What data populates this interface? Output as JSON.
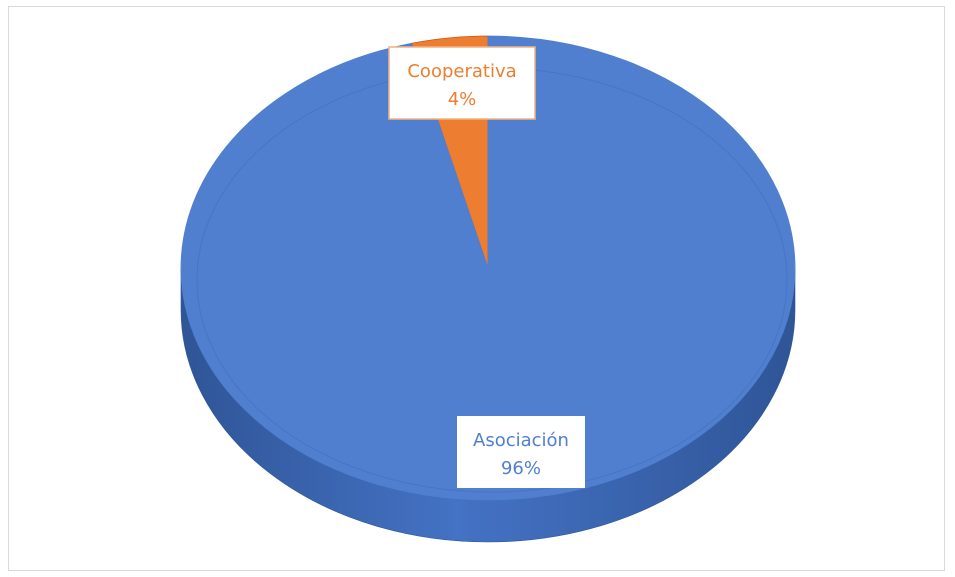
{
  "chart_data": {
    "type": "pie",
    "style": "3d",
    "title": "",
    "slices": [
      {
        "label": "Cooperativa",
        "value": 4,
        "value_label": "4%",
        "color": "#ed7d31",
        "side_color": "#c65f1f"
      },
      {
        "label": "Asociación",
        "value": 96,
        "value_label": "96%",
        "color": "#4f7fce",
        "side_color": "#3a64a8"
      }
    ],
    "label_box_border": "#f4b183",
    "legend": "none",
    "grid": false
  }
}
